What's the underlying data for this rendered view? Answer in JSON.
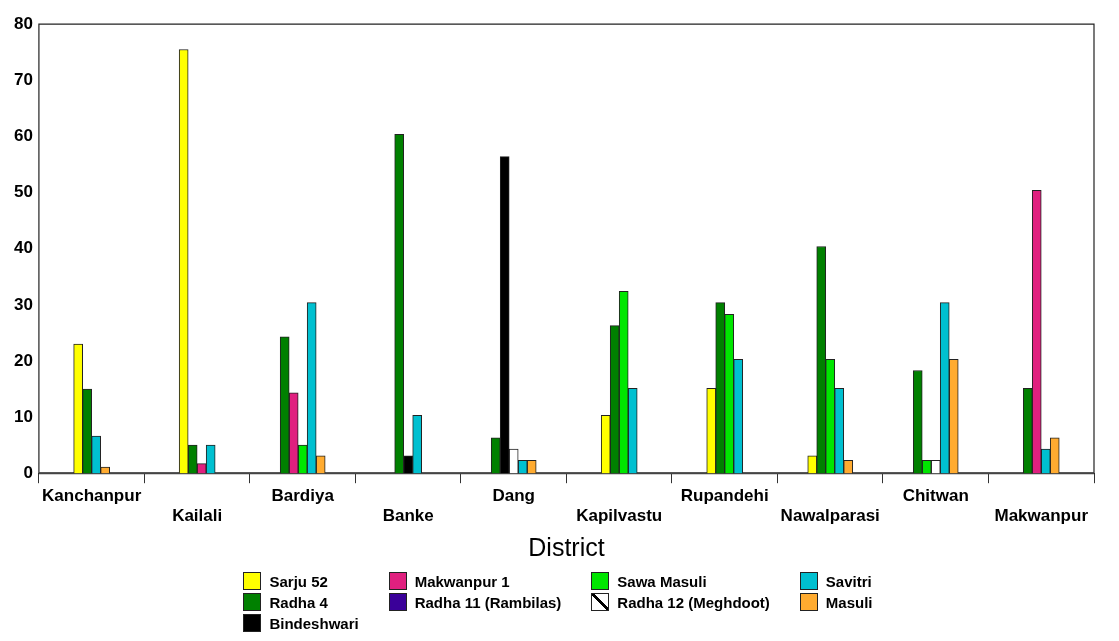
{
  "chart_data": {
    "type": "bar",
    "xlabel": "District",
    "categories": [
      "Kanchanpur",
      "Kailali",
      "Bardiya",
      "Banke",
      "Dang",
      "Kapilvastu",
      "Rupandehi",
      "Nawalparasi",
      "Chitwan",
      "Makwanpur"
    ],
    "series": [
      {
        "name": "Sarju 52",
        "color": "#ffff00",
        "values": [
          23,
          75.5,
          null,
          null,
          null,
          10.3,
          15.1,
          3.1,
          null,
          null
        ]
      },
      {
        "name": "Radha 4",
        "color": "#008000",
        "values": [
          15,
          5,
          24.3,
          60.4,
          6.3,
          26.3,
          30.4,
          40.4,
          18.3,
          15.1
        ]
      },
      {
        "name": "Makwanpur 1",
        "color": "#e0207f",
        "values": [
          null,
          1.7,
          14.3,
          null,
          null,
          null,
          null,
          null,
          null,
          50.4
        ]
      },
      {
        "name": "Radha 11 (Rambilas)",
        "color": "#3a0099",
        "values": [
          null,
          null,
          null,
          null,
          null,
          null,
          null,
          null,
          null,
          null
        ]
      },
      {
        "name": "Bindeshwari",
        "color": "#000000",
        "values": [
          null,
          null,
          null,
          3.1,
          56.4,
          null,
          null,
          null,
          null,
          null
        ]
      },
      {
        "name": "Sawa Masuli",
        "color": "#00e600",
        "values": [
          null,
          null,
          5,
          null,
          null,
          32.4,
          28.3,
          20.3,
          2.3,
          null
        ]
      },
      {
        "name": "Radha 12 (Meghdoot)",
        "color": "#ffffff",
        "values": [
          null,
          null,
          null,
          null,
          4.3,
          null,
          null,
          null,
          2.3,
          null
        ]
      },
      {
        "name": "Savitri",
        "color": "#00c0d0",
        "values": [
          6.6,
          5,
          30.4,
          10.3,
          2.3,
          15.1,
          20.3,
          15.1,
          30.4,
          4.3
        ]
      },
      {
        "name": "Masuli",
        "color": "#ffab30",
        "values": [
          1.1,
          null,
          3.1,
          null,
          2.3,
          null,
          null,
          2.3,
          20.3,
          6.3
        ]
      }
    ],
    "ylim": [
      0,
      80
    ],
    "yticks": [
      0,
      10,
      20,
      30,
      40,
      50,
      60,
      70,
      80
    ],
    "grid": false,
    "legend": "bottom"
  }
}
